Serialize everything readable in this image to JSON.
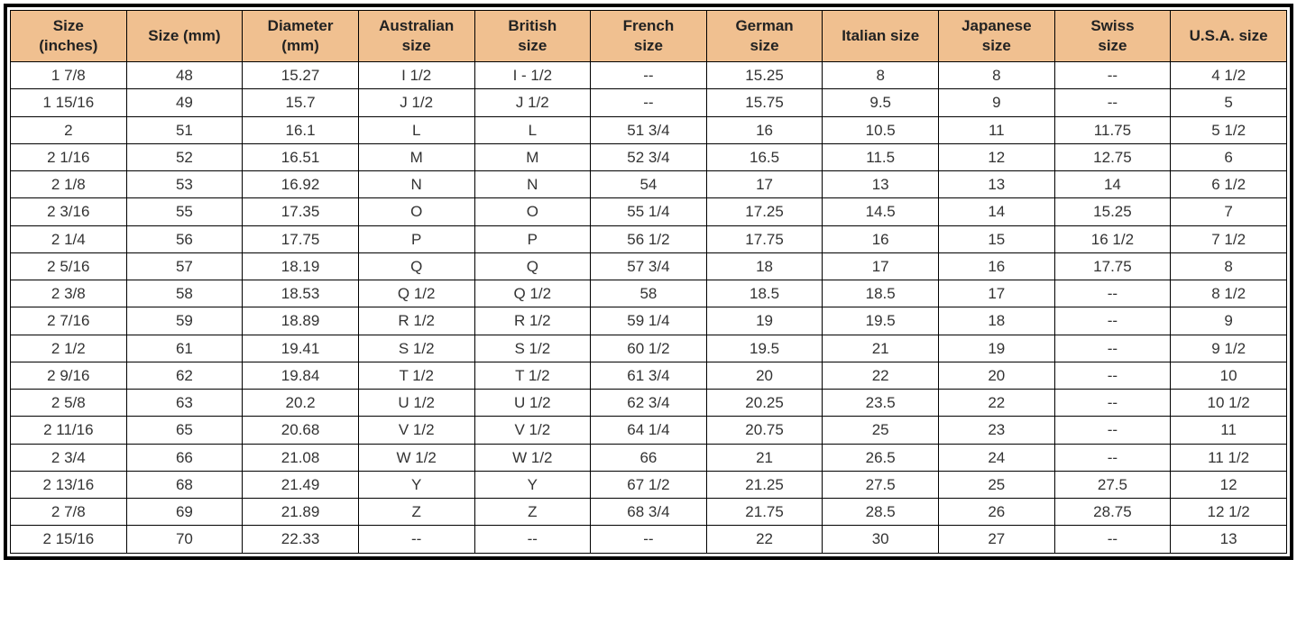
{
  "table": {
    "type": "table",
    "header_background_color": "#f0c090",
    "body_background_color": "#ffffff",
    "border_color": "#000000",
    "text_color": "#333333",
    "font_size_pt": 13,
    "columns": [
      {
        "label_line1": "Size",
        "label_line2": "(inches)"
      },
      {
        "label_line1": "Size (mm)",
        "label_line2": ""
      },
      {
        "label_line1": "Diameter",
        "label_line2": "(mm)"
      },
      {
        "label_line1": "Australian",
        "label_line2": "size"
      },
      {
        "label_line1": "British",
        "label_line2": "size"
      },
      {
        "label_line1": "French",
        "label_line2": "size"
      },
      {
        "label_line1": "German",
        "label_line2": "size"
      },
      {
        "label_line1": "Italian size",
        "label_line2": ""
      },
      {
        "label_line1": "Japanese",
        "label_line2": "size"
      },
      {
        "label_line1": "Swiss",
        "label_line2": "size"
      },
      {
        "label_line1": "U.S.A. size",
        "label_line2": ""
      }
    ],
    "rows": [
      [
        "1  7/8",
        "48",
        "15.27",
        "I 1/2",
        "I - 1/2",
        "--",
        "15.25",
        "8",
        "8",
        "--",
        "4 1/2"
      ],
      [
        "1 15/16",
        "49",
        "15.7",
        "J 1/2",
        "J 1/2",
        "--",
        "15.75",
        "9.5",
        "9",
        "--",
        "5"
      ],
      [
        "2",
        "51",
        "16.1",
        "L",
        "L",
        "51 3/4",
        "16",
        "10.5",
        "11",
        "11.75",
        "5 1/2"
      ],
      [
        "2  1/16",
        "52",
        "16.51",
        "M",
        "M",
        "52 3/4",
        "16.5",
        "11.5",
        "12",
        "12.75",
        "6"
      ],
      [
        "2  1/8",
        "53",
        "16.92",
        "N",
        "N",
        "54",
        "17",
        "13",
        "13",
        "14",
        "6 1/2"
      ],
      [
        "2  3/16",
        "55",
        "17.35",
        "O",
        "O",
        "55 1/4",
        "17.25",
        "14.5",
        "14",
        "15.25",
        "7"
      ],
      [
        "2  1/4",
        "56",
        "17.75",
        "P",
        "P",
        "56 1/2",
        "17.75",
        "16",
        "15",
        "16 1/2",
        "7 1/2"
      ],
      [
        "2  5/16",
        "57",
        "18.19",
        "Q",
        "Q",
        "57 3/4",
        "18",
        "17",
        "16",
        "17.75",
        "8"
      ],
      [
        "2  3/8",
        "58",
        "18.53",
        "Q 1/2",
        "Q 1/2",
        "58",
        "18.5",
        "18.5",
        "17",
        "--",
        "8 1/2"
      ],
      [
        "2  7/16",
        "59",
        "18.89",
        "R 1/2",
        "R 1/2",
        "59 1/4",
        "19",
        "19.5",
        "18",
        "--",
        "9"
      ],
      [
        "2  1/2",
        "61",
        "19.41",
        "S 1/2",
        "S 1/2",
        "60 1/2",
        "19.5",
        "21",
        "19",
        "--",
        "9 1/2"
      ],
      [
        "2  9/16",
        "62",
        "19.84",
        "T 1/2",
        "T 1/2",
        "61 3/4",
        "20",
        "22",
        "20",
        "--",
        "10"
      ],
      [
        "2  5/8",
        "63",
        "20.2",
        "U 1/2",
        "U 1/2",
        "62 3/4",
        "20.25",
        "23.5",
        "22",
        "--",
        "10 1/2"
      ],
      [
        "2 11/16",
        "65",
        "20.68",
        "V 1/2",
        "V 1/2",
        "64 1/4",
        "20.75",
        "25",
        "23",
        "--",
        "11"
      ],
      [
        "2  3/4",
        "66",
        "21.08",
        "W 1/2",
        "W 1/2",
        "66",
        "21",
        "26.5",
        "24",
        "--",
        "11 1/2"
      ],
      [
        "2 13/16",
        "68",
        "21.49",
        "Y",
        "Y",
        "67 1/2",
        "21.25",
        "27.5",
        "25",
        "27.5",
        "12"
      ],
      [
        "2  7/8",
        "69",
        "21.89",
        "Z",
        "Z",
        "68 3/4",
        "21.75",
        "28.5",
        "26",
        "28.75",
        "12 1/2"
      ],
      [
        "2 15/16",
        "70",
        "22.33",
        "--",
        "--",
        "--",
        "22",
        "30",
        "27",
        "--",
        "13"
      ]
    ]
  }
}
